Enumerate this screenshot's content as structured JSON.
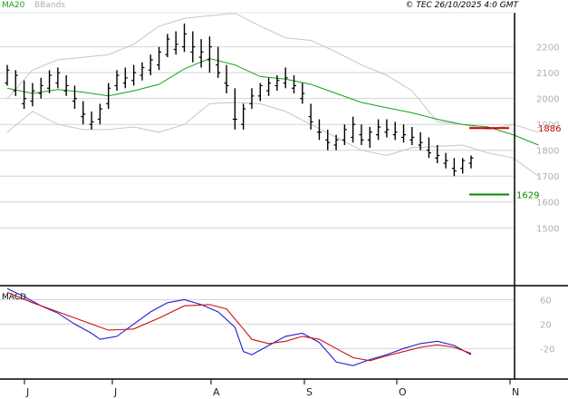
{
  "header": {
    "ma_label": "MA20",
    "bb_label": "BBands",
    "copyright": "© TEC 26/10/2025 4:0 GMT"
  },
  "macd_label": "MACD",
  "colors": {
    "ma": "#1aa01a",
    "bbands": "#c6c6c6",
    "bars": "#000000",
    "resistance": "#cc0000",
    "support": "#008800",
    "macd": "#1f1fd0",
    "signal": "#cc1111",
    "grid": "#d4d4d4",
    "axis_text": "#b0b0b0"
  },
  "chart_data": [
    {
      "type": "ohlc",
      "y_ticks": [
        "1500",
        "1600",
        "1700",
        "1800",
        "1900",
        "2000",
        "2100",
        "2200"
      ],
      "ylim": [
        1280,
        2325
      ],
      "x_ticks": [
        "J",
        "J",
        "A",
        "S",
        "O",
        "N"
      ],
      "xlim": [
        0,
        140
      ],
      "x_tick_pos": [
        6,
        30,
        57,
        83,
        109,
        135
      ],
      "series": [
        {
          "name": "MA20",
          "values": [
            [
              0,
              2040
            ],
            [
              6,
              2020
            ],
            [
              12,
              2035
            ],
            [
              18,
              2025
            ],
            [
              24,
              2010
            ],
            [
              30,
              2030
            ],
            [
              36,
              2055
            ],
            [
              42,
              2115
            ],
            [
              48,
              2155
            ],
            [
              54,
              2130
            ],
            [
              60,
              2085
            ],
            [
              66,
              2075
            ],
            [
              72,
              2055
            ],
            [
              78,
              2020
            ],
            [
              84,
              1985
            ],
            [
              90,
              1965
            ],
            [
              96,
              1945
            ],
            [
              102,
              1920
            ],
            [
              108,
              1900
            ],
            [
              114,
              1890
            ],
            [
              120,
              1860
            ],
            [
              126,
              1820
            ]
          ]
        },
        {
          "name": "BBands",
          "values": [
            [
              0,
              2000
            ],
            [
              6,
              2110
            ],
            [
              12,
              2150
            ],
            [
              18,
              2160
            ],
            [
              24,
              2170
            ],
            [
              30,
              2210
            ],
            [
              36,
              2280
            ],
            [
              42,
              2310
            ],
            [
              48,
              2320
            ],
            [
              54,
              2330
            ],
            [
              60,
              2280
            ],
            [
              66,
              2235
            ],
            [
              72,
              2225
            ],
            [
              78,
              2180
            ],
            [
              84,
              2130
            ],
            [
              90,
              2090
            ],
            [
              96,
              2030
            ],
            [
              102,
              1910
            ],
            [
              108,
              1900
            ],
            [
              114,
              1880
            ],
            [
              120,
              1900
            ],
            [
              126,
              1870
            ]
          ]
        },
        {
          "name": "BBands",
          "values": [
            [
              0,
              1870
            ],
            [
              6,
              1950
            ],
            [
              12,
              1900
            ],
            [
              18,
              1880
            ],
            [
              24,
              1880
            ],
            [
              30,
              1890
            ],
            [
              36,
              1870
            ],
            [
              42,
              1900
            ],
            [
              48,
              1980
            ],
            [
              54,
              1985
            ],
            [
              60,
              1980
            ],
            [
              66,
              1950
            ],
            [
              72,
              1900
            ],
            [
              78,
              1850
            ],
            [
              84,
              1800
            ],
            [
              90,
              1780
            ],
            [
              96,
              1810
            ],
            [
              102,
              1815
            ],
            [
              108,
              1820
            ],
            [
              114,
              1790
            ],
            [
              120,
              1770
            ],
            [
              126,
              1700
            ]
          ]
        }
      ],
      "bars": [
        [
          0,
          2060,
          2130,
          2050,
          2110
        ],
        [
          2,
          2030,
          2110,
          2010,
          2090
        ],
        [
          4,
          1980,
          2070,
          1960,
          2000
        ],
        [
          6,
          1990,
          2060,
          1970,
          2030
        ],
        [
          8,
          2020,
          2080,
          2000,
          2050
        ],
        [
          10,
          2040,
          2110,
          2020,
          2090
        ],
        [
          12,
          2060,
          2120,
          2040,
          2100
        ],
        [
          14,
          2030,
          2090,
          2010,
          2050
        ],
        [
          16,
          1990,
          2050,
          1960,
          2000
        ],
        [
          18,
          1930,
          1990,
          1900,
          1940
        ],
        [
          20,
          1900,
          1950,
          1880,
          1910
        ],
        [
          22,
          1920,
          1980,
          1900,
          1960
        ],
        [
          24,
          1980,
          2060,
          1960,
          2040
        ],
        [
          26,
          2050,
          2110,
          2030,
          2090
        ],
        [
          28,
          2060,
          2120,
          2040,
          2080
        ],
        [
          30,
          2070,
          2130,
          2050,
          2100
        ],
        [
          32,
          2090,
          2140,
          2070,
          2120
        ],
        [
          34,
          2110,
          2170,
          2090,
          2150
        ],
        [
          36,
          2130,
          2200,
          2110,
          2180
        ],
        [
          38,
          2170,
          2250,
          2160,
          2230
        ],
        [
          40,
          2190,
          2260,
          2170,
          2210
        ],
        [
          42,
          2200,
          2290,
          2180,
          2250
        ],
        [
          44,
          2180,
          2260,
          2140,
          2200
        ],
        [
          46,
          2160,
          2230,
          2120,
          2180
        ],
        [
          48,
          2150,
          2240,
          2100,
          2200
        ],
        [
          50,
          2130,
          2200,
          2080,
          2100
        ],
        [
          52,
          2060,
          2130,
          2020,
          2050
        ],
        [
          54,
          1920,
          2040,
          1880,
          1920
        ],
        [
          56,
          1900,
          1980,
          1880,
          1960
        ],
        [
          58,
          1980,
          2040,
          1960,
          2010
        ],
        [
          60,
          2010,
          2060,
          1990,
          2050
        ],
        [
          62,
          2030,
          2080,
          2010,
          2060
        ],
        [
          64,
          2050,
          2090,
          2030,
          2070
        ],
        [
          66,
          2060,
          2120,
          2040,
          2080
        ],
        [
          68,
          2040,
          2090,
          2020,
          2050
        ],
        [
          70,
          2000,
          2060,
          1980,
          2020
        ],
        [
          72,
          1930,
          1980,
          1880,
          1910
        ],
        [
          74,
          1870,
          1920,
          1840,
          1870
        ],
        [
          76,
          1840,
          1880,
          1800,
          1830
        ],
        [
          78,
          1820,
          1860,
          1800,
          1840
        ],
        [
          80,
          1840,
          1900,
          1820,
          1880
        ],
        [
          82,
          1850,
          1930,
          1830,
          1900
        ],
        [
          84,
          1860,
          1900,
          1820,
          1840
        ],
        [
          86,
          1840,
          1890,
          1810,
          1870
        ],
        [
          88,
          1860,
          1920,
          1840,
          1890
        ],
        [
          90,
          1870,
          1920,
          1850,
          1880
        ],
        [
          92,
          1860,
          1910,
          1840,
          1870
        ],
        [
          94,
          1850,
          1900,
          1830,
          1860
        ],
        [
          96,
          1840,
          1890,
          1820,
          1850
        ],
        [
          98,
          1820,
          1870,
          1800,
          1830
        ],
        [
          100,
          1800,
          1850,
          1770,
          1790
        ],
        [
          102,
          1770,
          1820,
          1750,
          1780
        ],
        [
          104,
          1750,
          1790,
          1730,
          1760
        ],
        [
          106,
          1730,
          1770,
          1700,
          1720
        ],
        [
          108,
          1730,
          1770,
          1710,
          1760
        ],
        [
          110,
          1750,
          1780,
          1730,
          1770
        ]
      ],
      "levels": [
        {
          "label": "1886",
          "value": 1886,
          "x_range": [
            112,
            124
          ]
        },
        {
          "label": "1629",
          "value": 1629,
          "x_range": [
            112,
            124
          ]
        }
      ]
    },
    {
      "type": "line",
      "title": "MACD",
      "y_ticks": [
        "-20",
        "20",
        "60"
      ],
      "ylim": [
        -70,
        80
      ],
      "x_ticks": [
        "J",
        "J",
        "A",
        "S",
        "O",
        "N"
      ],
      "xlim": [
        0,
        140
      ],
      "x_tick_pos": [
        6,
        30,
        57,
        83,
        109,
        135
      ],
      "series": [
        {
          "name": "MACD",
          "values": [
            [
              0,
              78
            ],
            [
              4,
              65
            ],
            [
              8,
              50
            ],
            [
              12,
              38
            ],
            [
              16,
              20
            ],
            [
              20,
              5
            ],
            [
              22,
              -5
            ],
            [
              26,
              0
            ],
            [
              30,
              20
            ],
            [
              34,
              40
            ],
            [
              38,
              55
            ],
            [
              42,
              60
            ],
            [
              46,
              52
            ],
            [
              50,
              40
            ],
            [
              54,
              15
            ],
            [
              56,
              -25
            ],
            [
              58,
              -30
            ],
            [
              62,
              -15
            ],
            [
              66,
              0
            ],
            [
              70,
              5
            ],
            [
              74,
              -10
            ],
            [
              78,
              -42
            ],
            [
              82,
              -48
            ],
            [
              86,
              -38
            ],
            [
              90,
              -30
            ],
            [
              94,
              -20
            ],
            [
              98,
              -12
            ],
            [
              102,
              -8
            ],
            [
              106,
              -15
            ],
            [
              110,
              -30
            ]
          ]
        },
        {
          "name": "Signal",
          "values": [
            [
              0,
              72
            ],
            [
              6,
              55
            ],
            [
              12,
              40
            ],
            [
              18,
              25
            ],
            [
              24,
              10
            ],
            [
              30,
              12
            ],
            [
              36,
              30
            ],
            [
              42,
              50
            ],
            [
              48,
              52
            ],
            [
              52,
              45
            ],
            [
              56,
              12
            ],
            [
              58,
              -5
            ],
            [
              62,
              -12
            ],
            [
              66,
              -8
            ],
            [
              70,
              0
            ],
            [
              74,
              -5
            ],
            [
              78,
              -20
            ],
            [
              82,
              -35
            ],
            [
              86,
              -40
            ],
            [
              90,
              -32
            ],
            [
              94,
              -25
            ],
            [
              98,
              -18
            ],
            [
              102,
              -14
            ],
            [
              106,
              -18
            ],
            [
              110,
              -28
            ]
          ]
        }
      ]
    }
  ]
}
